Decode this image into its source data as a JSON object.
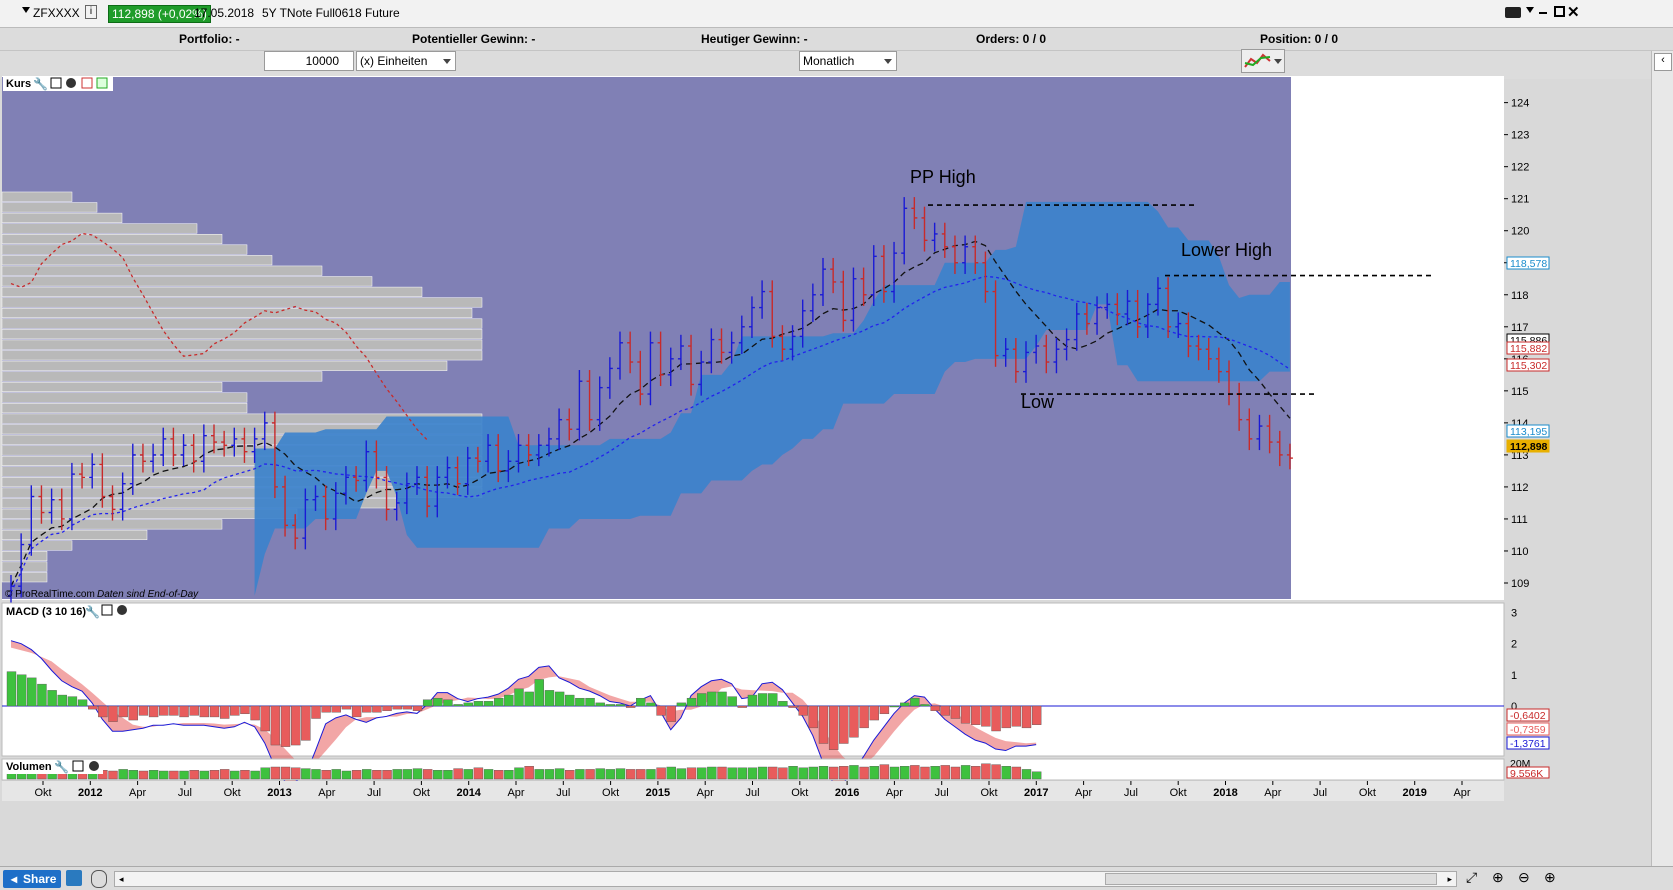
{
  "window": {
    "symbol": "ZFXXXX",
    "price_badge": "112,898 (+0,02%)",
    "date": "17.05.2018",
    "instrument": "5Y TNote Full0618 Future"
  },
  "info_bar": {
    "portfolio": "Portfolio: -",
    "potential_gain": "Potentieller Gewinn: -",
    "todays_gain": "Heutiger Gewinn: -",
    "orders": "Orders: 0 / 0",
    "position": "Position: 0 / 0"
  },
  "toolbar": {
    "quantity": "10000",
    "units_select": "(x) Einheiten",
    "period_select": "Monatlich"
  },
  "panels": {
    "price": {
      "title": "Kurs",
      "footnote_source": "© ProRealTime.com",
      "footnote_note": "Daten sind End-of-Day"
    },
    "macd": {
      "title": "MACD (3 10 16)"
    },
    "volume": {
      "title": "Volumen"
    }
  },
  "status_bar": {
    "share_label": "Share"
  },
  "colors": {
    "background": "#8080b5",
    "cloud": "#3a82cc",
    "up": "#1a1ad6",
    "down": "#c82a2a",
    "macd_green": "#3ec13e",
    "macd_red": "#e85c5c"
  },
  "chart_data": [
    {
      "type": "candlestick",
      "panel": "Kurs",
      "bar_style": "OHLC bars",
      "y_range": [
        108.5,
        124.8
      ],
      "y_ticks": [
        109,
        110,
        111,
        112,
        113,
        114,
        115,
        116,
        117,
        118,
        119,
        120,
        121,
        122,
        123,
        124
      ],
      "x_tick_labels": [
        "Okt",
        "2012",
        "Apr",
        "Jul",
        "Okt",
        "2013",
        "Apr",
        "Jul",
        "Okt",
        "2014",
        "Apr",
        "Jul",
        "Okt",
        "2015",
        "Apr",
        "Jul",
        "Okt",
        "2016",
        "Apr",
        "Jul",
        "Okt",
        "2017",
        "Apr",
        "Jul",
        "Okt",
        "2018",
        "Apr",
        "Jul",
        "Okt",
        "2019",
        "Apr"
      ],
      "annotations": [
        {
          "text": "PP High",
          "level": 120.8
        },
        {
          "text": "Lower High",
          "level": 118.6
        },
        {
          "text": "Low",
          "level": 114.9
        }
      ],
      "price_labels": [
        {
          "value": "118,578",
          "color": "#1a8ccc"
        },
        {
          "value": "115,886",
          "color": "#000000"
        },
        {
          "value": "115,882",
          "color": "#c82a2a"
        },
        {
          "value": "115,302",
          "color": "#c82a2a"
        },
        {
          "value": "113,195",
          "color": "#1a8ccc"
        },
        {
          "value": "112,898",
          "color": "#e8b000"
        }
      ],
      "closes": [
        108.9,
        110.2,
        111.7,
        111.2,
        111.6,
        111.0,
        112.4,
        112.3,
        112.7,
        111.7,
        111.3,
        112.1,
        113.0,
        112.8,
        113.0,
        113.5,
        113.0,
        113.3,
        112.8,
        113.6,
        113.4,
        113.3,
        113.5,
        113.1,
        113.5,
        114.0,
        112.0,
        110.8,
        110.4,
        111.6,
        111.7,
        111.0,
        111.8,
        112.3,
        112.2,
        113.1,
        112.3,
        111.3,
        111.5,
        112.1,
        112.3,
        111.4,
        112.3,
        112.6,
        112.1,
        112.9,
        112.8,
        113.3,
        112.5,
        112.8,
        113.3,
        113.0,
        113.3,
        113.5,
        114.1,
        113.8,
        115.3,
        114.1,
        115.1,
        115.7,
        116.5,
        115.9,
        114.9,
        116.5,
        115.5,
        116.0,
        116.4,
        115.2,
        115.9,
        116.6,
        116.2,
        116.5,
        117.0,
        117.6,
        118.1,
        116.7,
        116.3,
        116.7,
        117.5,
        118.0,
        118.8,
        118.4,
        117.2,
        118.5,
        118.0,
        119.2,
        118.1,
        119.3,
        120.7,
        120.4,
        119.7,
        119.9,
        119.5,
        119.0,
        119.5,
        119.0,
        118.1,
        116.1,
        116.3,
        115.6,
        116.2,
        116.4,
        115.9,
        116.3,
        116.6,
        117.4,
        117.1,
        117.6,
        117.7,
        117.4,
        117.8,
        117.0,
        117.7,
        118.2,
        117.0,
        117.1,
        116.4,
        116.3,
        116.0,
        115.6,
        114.9,
        114.1,
        113.5,
        113.9,
        113.4,
        113.0,
        112.9
      ]
    },
    {
      "type": "bar",
      "panel": "MACD (3 10 16)",
      "y_range": [
        -1.6,
        3.2
      ],
      "y_ticks": [
        0,
        1,
        2,
        3
      ],
      "value_labels": [
        {
          "value": "-0,6402",
          "color": "#c82a2a"
        },
        {
          "value": "-0,7359",
          "color": "#e85c5c"
        },
        {
          "value": "-1,3761",
          "color": "#1a1ad6"
        }
      ],
      "histogram": [
        1.1,
        1.0,
        0.9,
        0.7,
        0.5,
        0.35,
        0.3,
        0.2,
        -0.1,
        -0.35,
        -0.5,
        -0.35,
        -0.45,
        -0.3,
        -0.35,
        -0.3,
        -0.3,
        -0.35,
        -0.3,
        -0.35,
        -0.35,
        -0.4,
        -0.3,
        -0.25,
        -0.45,
        -0.8,
        -1.25,
        -1.3,
        -1.25,
        -1.1,
        -0.4,
        -0.2,
        -0.2,
        -0.1,
        -0.35,
        -0.2,
        -0.2,
        -0.15,
        -0.1,
        -0.1,
        -0.15,
        0.2,
        0.25,
        0.2,
        0.05,
        0.1,
        0.15,
        0.15,
        0.25,
        0.35,
        0.55,
        0.45,
        0.85,
        0.5,
        0.45,
        0.35,
        0.25,
        0.25,
        0.1,
        0.05,
        0.05,
        -0.05,
        0.25,
        0.1,
        -0.3,
        -0.5,
        0.1,
        0.25,
        0.4,
        0.45,
        0.45,
        0.3,
        -0.05,
        0.35,
        0.4,
        0.4,
        0.15,
        -0.05,
        -0.3,
        -0.7,
        -1.2,
        -1.4,
        -1.2,
        -1.0,
        -0.7,
        -0.45,
        -0.25,
        0.0,
        0.1,
        0.25,
        0.05,
        -0.15,
        -0.3,
        -0.4,
        -0.55,
        -0.6,
        -0.65,
        -0.8,
        -0.7,
        -0.65,
        -0.7,
        -0.6
      ]
    },
    {
      "type": "bar",
      "panel": "Volumen",
      "value_labels": [
        {
          "value": "20M",
          "color": "#000000"
        },
        {
          "value": "9.556K",
          "color": "#c82a2a"
        }
      ],
      "volume_relative": [
        0.45,
        0.55,
        0.5,
        0.5,
        0.5,
        0.55,
        0.5,
        0.5,
        0.45,
        0.55,
        0.5,
        0.6,
        0.55,
        0.5,
        0.55,
        0.5,
        0.5,
        0.5,
        0.55,
        0.5,
        0.55,
        0.6,
        0.5,
        0.55,
        0.5,
        0.7,
        0.75,
        0.75,
        0.7,
        0.65,
        0.6,
        0.55,
        0.6,
        0.5,
        0.55,
        0.6,
        0.55,
        0.55,
        0.6,
        0.6,
        0.65,
        0.6,
        0.55,
        0.55,
        0.65,
        0.6,
        0.7,
        0.6,
        0.55,
        0.55,
        0.7,
        0.8,
        0.6,
        0.6,
        0.65,
        0.55,
        0.6,
        0.6,
        0.65,
        0.6,
        0.65,
        0.6,
        0.6,
        0.6,
        0.7,
        0.75,
        0.65,
        0.7,
        0.7,
        0.75,
        0.75,
        0.7,
        0.7,
        0.7,
        0.75,
        0.75,
        0.7,
        0.8,
        0.7,
        0.75,
        0.8,
        0.75,
        0.8,
        0.85,
        0.75,
        0.8,
        0.9,
        0.75,
        0.8,
        0.85,
        0.75,
        0.8,
        0.85,
        0.75,
        0.85,
        0.8,
        0.95,
        0.9,
        0.8,
        0.75,
        0.6,
        0.45
      ]
    }
  ]
}
